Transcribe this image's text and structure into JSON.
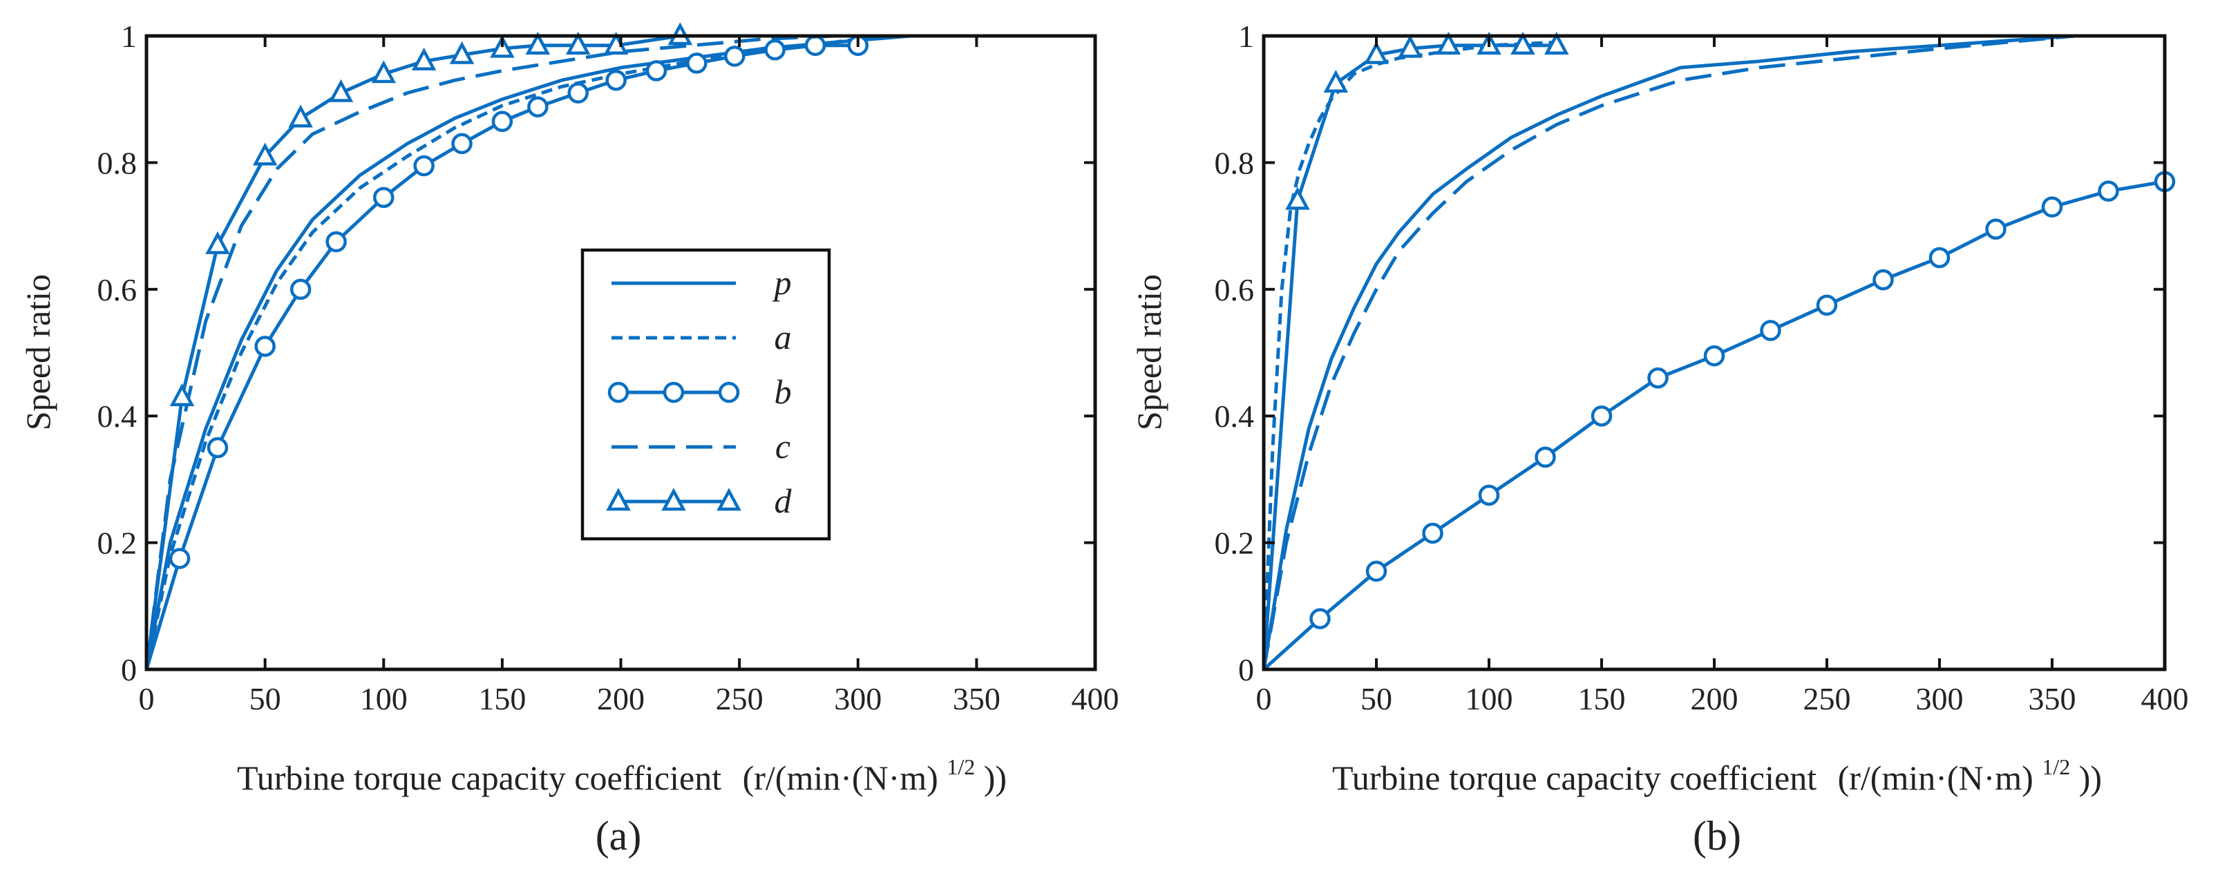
{
  "style": {
    "series_color": "#0a6fc2",
    "axis_color": "#111111"
  },
  "legend_labels": [
    "p",
    "a",
    "b",
    "c",
    "d"
  ],
  "chart_data": [
    {
      "type": "line",
      "panel": "(a)",
      "caption": "(a)",
      "xlabel": "Turbine torque capacity coefficient",
      "xlabel_unit_pre": "(r/(min·(N·m)",
      "xlabel_unit_sup": "1/2",
      "xlabel_unit_post": "))",
      "ylabel": "Speed ratio",
      "xlim": [
        0,
        400
      ],
      "ylim": [
        0,
        1
      ],
      "xticks": [
        0,
        50,
        100,
        150,
        200,
        250,
        300,
        350,
        400
      ],
      "xtick_labels": [
        "0",
        "50",
        "100",
        "150",
        "200",
        "250",
        "300",
        "350",
        "400"
      ],
      "yticks": [
        0,
        0.2,
        0.4,
        0.6,
        0.8,
        1
      ],
      "ytick_labels": [
        "0",
        "0.2",
        "0.4",
        "0.6",
        "0.8",
        "1"
      ],
      "legend": {
        "entries": [
          "p",
          "a",
          "b",
          "c",
          "d"
        ],
        "position": "center-right"
      },
      "series": [
        {
          "name": "p",
          "style": "solid",
          "marker": "none",
          "x": [
            0,
            10,
            25,
            40,
            55,
            70,
            90,
            110,
            130,
            150,
            175,
            200,
            230,
            260,
            290,
            322
          ],
          "y": [
            0,
            0.2,
            0.38,
            0.52,
            0.63,
            0.71,
            0.78,
            0.83,
            0.87,
            0.9,
            0.93,
            0.95,
            0.965,
            0.98,
            0.99,
            1
          ]
        },
        {
          "name": "a",
          "style": "short-dash",
          "marker": "none",
          "x": [
            0,
            10,
            25,
            40,
            55,
            70,
            90,
            110,
            130,
            150,
            175,
            200,
            230,
            260,
            290,
            310
          ],
          "y": [
            0,
            0.18,
            0.36,
            0.5,
            0.61,
            0.69,
            0.76,
            0.81,
            0.855,
            0.89,
            0.92,
            0.94,
            0.96,
            0.975,
            0.99,
            1
          ]
        },
        {
          "name": "b",
          "style": "solid",
          "marker": "circle",
          "x": [
            0,
            14,
            30,
            50,
            65,
            80,
            100,
            117,
            133,
            150,
            165,
            182,
            198,
            215,
            232,
            248,
            265,
            282,
            300
          ],
          "y": [
            0,
            0.175,
            0.35,
            0.51,
            0.6,
            0.675,
            0.745,
            0.795,
            0.83,
            0.865,
            0.888,
            0.91,
            0.93,
            0.945,
            0.957,
            0.968,
            0.978,
            0.985,
            0.985
          ]
        },
        {
          "name": "c",
          "style": "long-dash",
          "marker": "none",
          "x": [
            0,
            10,
            25,
            40,
            55,
            70,
            90,
            110,
            130,
            150,
            175,
            200,
            230,
            260,
            290
          ],
          "y": [
            0,
            0.3,
            0.55,
            0.7,
            0.79,
            0.845,
            0.88,
            0.91,
            0.93,
            0.945,
            0.96,
            0.975,
            0.985,
            0.995,
            1
          ]
        },
        {
          "name": "d",
          "style": "solid",
          "marker": "triangle",
          "x": [
            0,
            15,
            30,
            50,
            65,
            82,
            100,
            117,
            133,
            150,
            165,
            182,
            198,
            225
          ],
          "y": [
            0,
            0.43,
            0.67,
            0.81,
            0.87,
            0.91,
            0.94,
            0.96,
            0.97,
            0.98,
            0.985,
            0.985,
            0.985,
            1
          ]
        }
      ]
    },
    {
      "type": "line",
      "panel": "(b)",
      "caption": "(b)",
      "xlabel": "Turbine torque capacity coefficient",
      "xlabel_unit_pre": "(r/(min·(N·m)",
      "xlabel_unit_sup": "1/2",
      "xlabel_unit_post": "))",
      "ylabel": "Speed ratio",
      "xlim": [
        0,
        400
      ],
      "ylim": [
        0,
        1
      ],
      "xticks": [
        0,
        50,
        100,
        150,
        200,
        250,
        300,
        350,
        400
      ],
      "xtick_labels": [
        "0",
        "50",
        "100",
        "150",
        "200",
        "250",
        "300",
        "350",
        "400"
      ],
      "yticks": [
        0,
        0.2,
        0.4,
        0.6,
        0.8,
        1
      ],
      "ytick_labels": [
        "0",
        "0.2",
        "0.4",
        "0.6",
        "0.8",
        "1"
      ],
      "series": [
        {
          "name": "p",
          "style": "solid",
          "marker": "none",
          "x": [
            0,
            10,
            20,
            30,
            40,
            50,
            60,
            75,
            90,
            110,
            130,
            150,
            185,
            220,
            260,
            300,
            360
          ],
          "y": [
            0,
            0.22,
            0.38,
            0.49,
            0.57,
            0.64,
            0.69,
            0.75,
            0.79,
            0.84,
            0.875,
            0.905,
            0.95,
            0.96,
            0.975,
            0.985,
            1
          ]
        },
        {
          "name": "a",
          "style": "short-dash",
          "marker": "none",
          "x": [
            0,
            4,
            8,
            12,
            16,
            20,
            25,
            30,
            40,
            50,
            60,
            80,
            100,
            130
          ],
          "y": [
            0,
            0.35,
            0.6,
            0.73,
            0.79,
            0.83,
            0.87,
            0.9,
            0.94,
            0.955,
            0.965,
            0.975,
            0.985,
            0.99
          ]
        },
        {
          "name": "b",
          "style": "solid",
          "marker": "circle",
          "x": [
            0,
            25,
            50,
            75,
            100,
            125,
            150,
            175,
            200,
            225,
            250,
            275,
            300,
            325,
            350,
            375,
            400
          ],
          "y": [
            0,
            0.08,
            0.155,
            0.215,
            0.275,
            0.335,
            0.4,
            0.46,
            0.495,
            0.535,
            0.575,
            0.615,
            0.65,
            0.695,
            0.73,
            0.755,
            0.77
          ]
        },
        {
          "name": "c",
          "style": "long-dash",
          "marker": "none",
          "x": [
            0,
            10,
            20,
            30,
            40,
            50,
            60,
            75,
            90,
            110,
            130,
            150,
            185,
            220,
            260,
            300,
            360
          ],
          "y": [
            0,
            0.2,
            0.34,
            0.45,
            0.53,
            0.6,
            0.66,
            0.72,
            0.77,
            0.82,
            0.86,
            0.89,
            0.93,
            0.95,
            0.965,
            0.98,
            1
          ]
        },
        {
          "name": "d",
          "style": "solid",
          "marker": "triangle",
          "x": [
            0,
            15,
            32,
            50,
            65,
            82,
            100,
            115,
            130
          ],
          "y": [
            0,
            0.74,
            0.925,
            0.97,
            0.98,
            0.985,
            0.985,
            0.985,
            0.985
          ]
        }
      ]
    }
  ]
}
